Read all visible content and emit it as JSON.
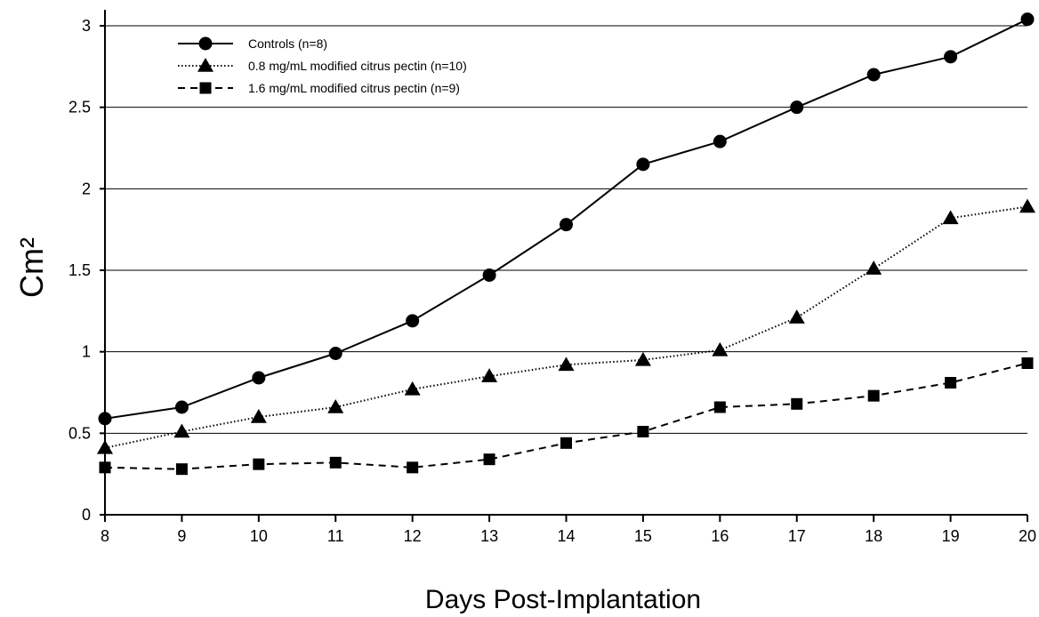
{
  "chart_data": {
    "type": "line",
    "xlabel": "Days Post-Implantation",
    "ylabel": "Cm²",
    "xlim": [
      8,
      20
    ],
    "ylim": [
      0,
      3
    ],
    "x": [
      8,
      9,
      10,
      11,
      12,
      13,
      14,
      15,
      16,
      17,
      18,
      19,
      20
    ],
    "xticks": [
      "8",
      "9",
      "10",
      "11",
      "12",
      "13",
      "14",
      "15",
      "16",
      "17",
      "18",
      "19",
      "20"
    ],
    "yticks": [
      "0",
      "0.5",
      "1",
      "1.5",
      "2",
      "2.5",
      "3"
    ],
    "ytick_values": [
      0,
      0.5,
      1,
      1.5,
      2,
      2.5,
      3
    ],
    "grid": "horizontal",
    "legend_position": "top-left",
    "colors": {
      "line": "#000000",
      "grid": "#000000",
      "background": "#ffffff"
    },
    "series": [
      {
        "name": "Controls (n=8)",
        "marker": "circle",
        "line_style": "solid",
        "values": [
          0.59,
          0.66,
          0.84,
          0.99,
          1.19,
          1.47,
          1.78,
          2.15,
          2.29,
          2.5,
          2.7,
          2.81,
          3.04
        ]
      },
      {
        "name": "0.8 mg/mL modified citrus pectin (n=10)",
        "marker": "triangle",
        "line_style": "dotted",
        "values": [
          0.41,
          0.51,
          0.6,
          0.66,
          0.77,
          0.85,
          0.92,
          0.95,
          1.01,
          1.21,
          1.51,
          1.82,
          1.89
        ]
      },
      {
        "name": "1.6 mg/mL modified citrus pectin (n=9)",
        "marker": "square",
        "line_style": "dashed",
        "values": [
          0.29,
          0.28,
          0.31,
          0.32,
          0.29,
          0.34,
          0.44,
          0.51,
          0.66,
          0.68,
          0.73,
          0.81,
          0.93
        ]
      }
    ]
  }
}
